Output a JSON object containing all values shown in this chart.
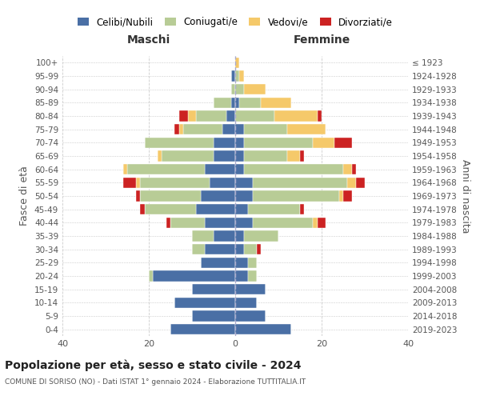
{
  "age_groups": [
    "0-4",
    "5-9",
    "10-14",
    "15-19",
    "20-24",
    "25-29",
    "30-34",
    "35-39",
    "40-44",
    "45-49",
    "50-54",
    "55-59",
    "60-64",
    "65-69",
    "70-74",
    "75-79",
    "80-84",
    "85-89",
    "90-94",
    "95-99",
    "100+"
  ],
  "birth_years": [
    "2019-2023",
    "2014-2018",
    "2009-2013",
    "2004-2008",
    "1999-2003",
    "1994-1998",
    "1989-1993",
    "1984-1988",
    "1979-1983",
    "1974-1978",
    "1969-1973",
    "1964-1968",
    "1959-1963",
    "1954-1958",
    "1949-1953",
    "1944-1948",
    "1939-1943",
    "1934-1938",
    "1929-1933",
    "1924-1928",
    "≤ 1923"
  ],
  "colors": {
    "celibe": "#4a6fa5",
    "coniugato": "#b8cc96",
    "vedovo": "#f5c96a",
    "divorziato": "#cc2222"
  },
  "maschi": {
    "celibe": [
      15,
      10,
      14,
      10,
      19,
      8,
      7,
      5,
      7,
      9,
      8,
      6,
      7,
      5,
      5,
      3,
      2,
      1,
      0,
      1,
      0
    ],
    "coniugato": [
      0,
      0,
      0,
      0,
      1,
      0,
      3,
      5,
      8,
      12,
      14,
      16,
      18,
      12,
      16,
      9,
      7,
      4,
      1,
      0,
      0
    ],
    "vedovo": [
      0,
      0,
      0,
      0,
      0,
      0,
      0,
      0,
      0,
      0,
      0,
      1,
      1,
      1,
      0,
      1,
      2,
      0,
      0,
      0,
      0
    ],
    "divorziato": [
      0,
      0,
      0,
      0,
      0,
      0,
      0,
      0,
      1,
      1,
      1,
      3,
      0,
      0,
      0,
      1,
      2,
      0,
      0,
      0,
      0
    ]
  },
  "femmine": {
    "nubile": [
      13,
      7,
      5,
      7,
      3,
      3,
      2,
      2,
      4,
      3,
      4,
      4,
      2,
      2,
      2,
      2,
      0,
      1,
      0,
      0,
      0
    ],
    "coniugata": [
      0,
      0,
      0,
      0,
      2,
      2,
      3,
      8,
      14,
      12,
      20,
      22,
      23,
      10,
      16,
      10,
      9,
      5,
      2,
      1,
      0
    ],
    "vedova": [
      0,
      0,
      0,
      0,
      0,
      0,
      0,
      0,
      1,
      0,
      1,
      2,
      2,
      3,
      5,
      9,
      10,
      7,
      5,
      1,
      1
    ],
    "divorziata": [
      0,
      0,
      0,
      0,
      0,
      0,
      1,
      0,
      2,
      1,
      2,
      2,
      1,
      1,
      4,
      0,
      1,
      0,
      0,
      0,
      0
    ]
  },
  "title": "Popolazione per età, sesso e stato civile - 2024",
  "subtitle": "COMUNE DI SORISO (NO) - Dati ISTAT 1° gennaio 2024 - Elaborazione TUTTITALIA.IT",
  "xlabel_left": "Maschi",
  "xlabel_right": "Femmine",
  "ylabel_left": "Fasce di età",
  "ylabel_right": "Anni di nascita",
  "xlim": 40,
  "legend_labels": [
    "Celibi/Nubili",
    "Coniugati/e",
    "Vedovi/e",
    "Divorziati/e"
  ],
  "background_color": "#ffffff"
}
